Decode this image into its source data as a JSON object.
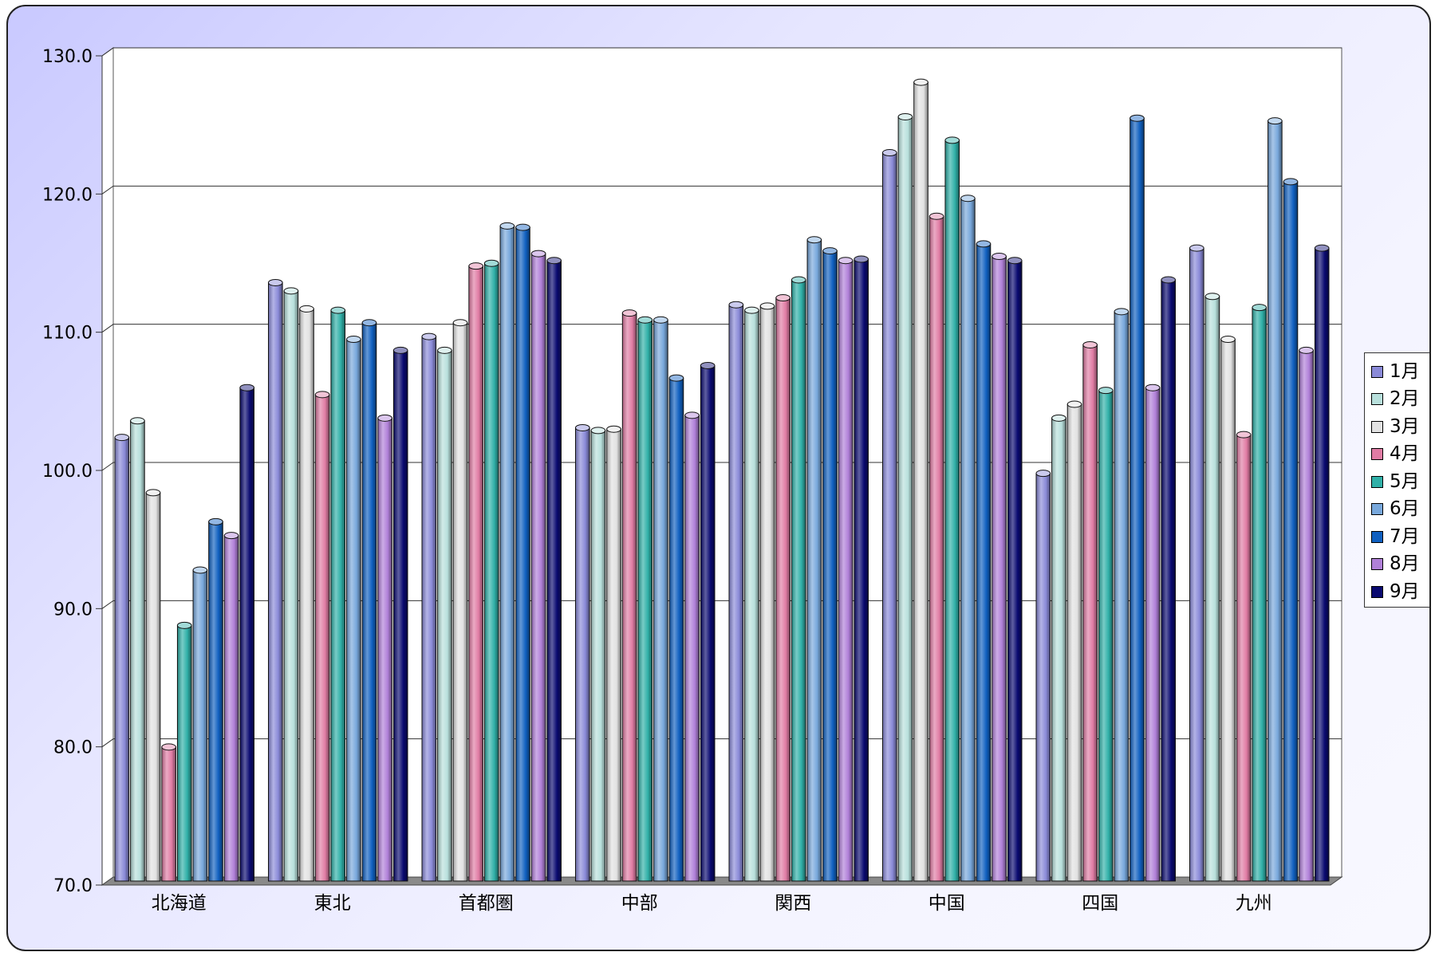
{
  "chart_data": {
    "type": "bar",
    "title": "",
    "xlabel": "",
    "ylabel": "",
    "ylim": [
      70,
      130
    ],
    "yticks": [
      "70.0",
      "80.0",
      "90.0",
      "100.0",
      "110.0",
      "120.0",
      "130.0"
    ],
    "grid": true,
    "legend_position": "right",
    "style": "3d-cylinder",
    "categories": [
      "北海道",
      "東北",
      "首都圏",
      "中部",
      "関西",
      "中国",
      "四国",
      "九州"
    ],
    "series": [
      {
        "name": "1月",
        "color": "#8a8ad8",
        "values": [
          102.1,
          113.3,
          109.4,
          102.8,
          111.7,
          122.7,
          99.5,
          115.8
        ]
      },
      {
        "name": "2月",
        "color": "#b8e0dc",
        "values": [
          103.3,
          112.7,
          108.4,
          102.6,
          111.3,
          125.3,
          103.5,
          112.3
        ]
      },
      {
        "name": "3月",
        "color": "#e2e2e2",
        "values": [
          98.1,
          111.4,
          110.4,
          102.7,
          111.6,
          127.8,
          104.5,
          109.2
        ]
      },
      {
        "name": "4月",
        "color": "#e07ca4",
        "values": [
          79.7,
          105.2,
          114.5,
          111.1,
          112.2,
          118.1,
          108.8,
          102.3
        ]
      },
      {
        "name": "5月",
        "color": "#30b0a8",
        "values": [
          88.5,
          111.3,
          114.7,
          110.6,
          113.5,
          123.6,
          105.5,
          111.5
        ]
      },
      {
        "name": "6月",
        "color": "#78a8dc",
        "values": [
          92.5,
          109.2,
          117.4,
          110.6,
          116.4,
          119.4,
          111.2,
          125.0
        ]
      },
      {
        "name": "7月",
        "color": "#1060c0",
        "values": [
          96.0,
          110.4,
          117.3,
          106.4,
          115.6,
          116.1,
          125.2,
          120.6
        ]
      },
      {
        "name": "8月",
        "color": "#b080d8",
        "values": [
          95.0,
          103.5,
          115.4,
          103.7,
          114.9,
          115.2,
          105.7,
          108.4
        ]
      },
      {
        "name": "9月",
        "color": "#0a0a70",
        "values": [
          105.7,
          108.4,
          114.9,
          107.3,
          115.0,
          114.9,
          113.5,
          115.8
        ]
      }
    ]
  }
}
